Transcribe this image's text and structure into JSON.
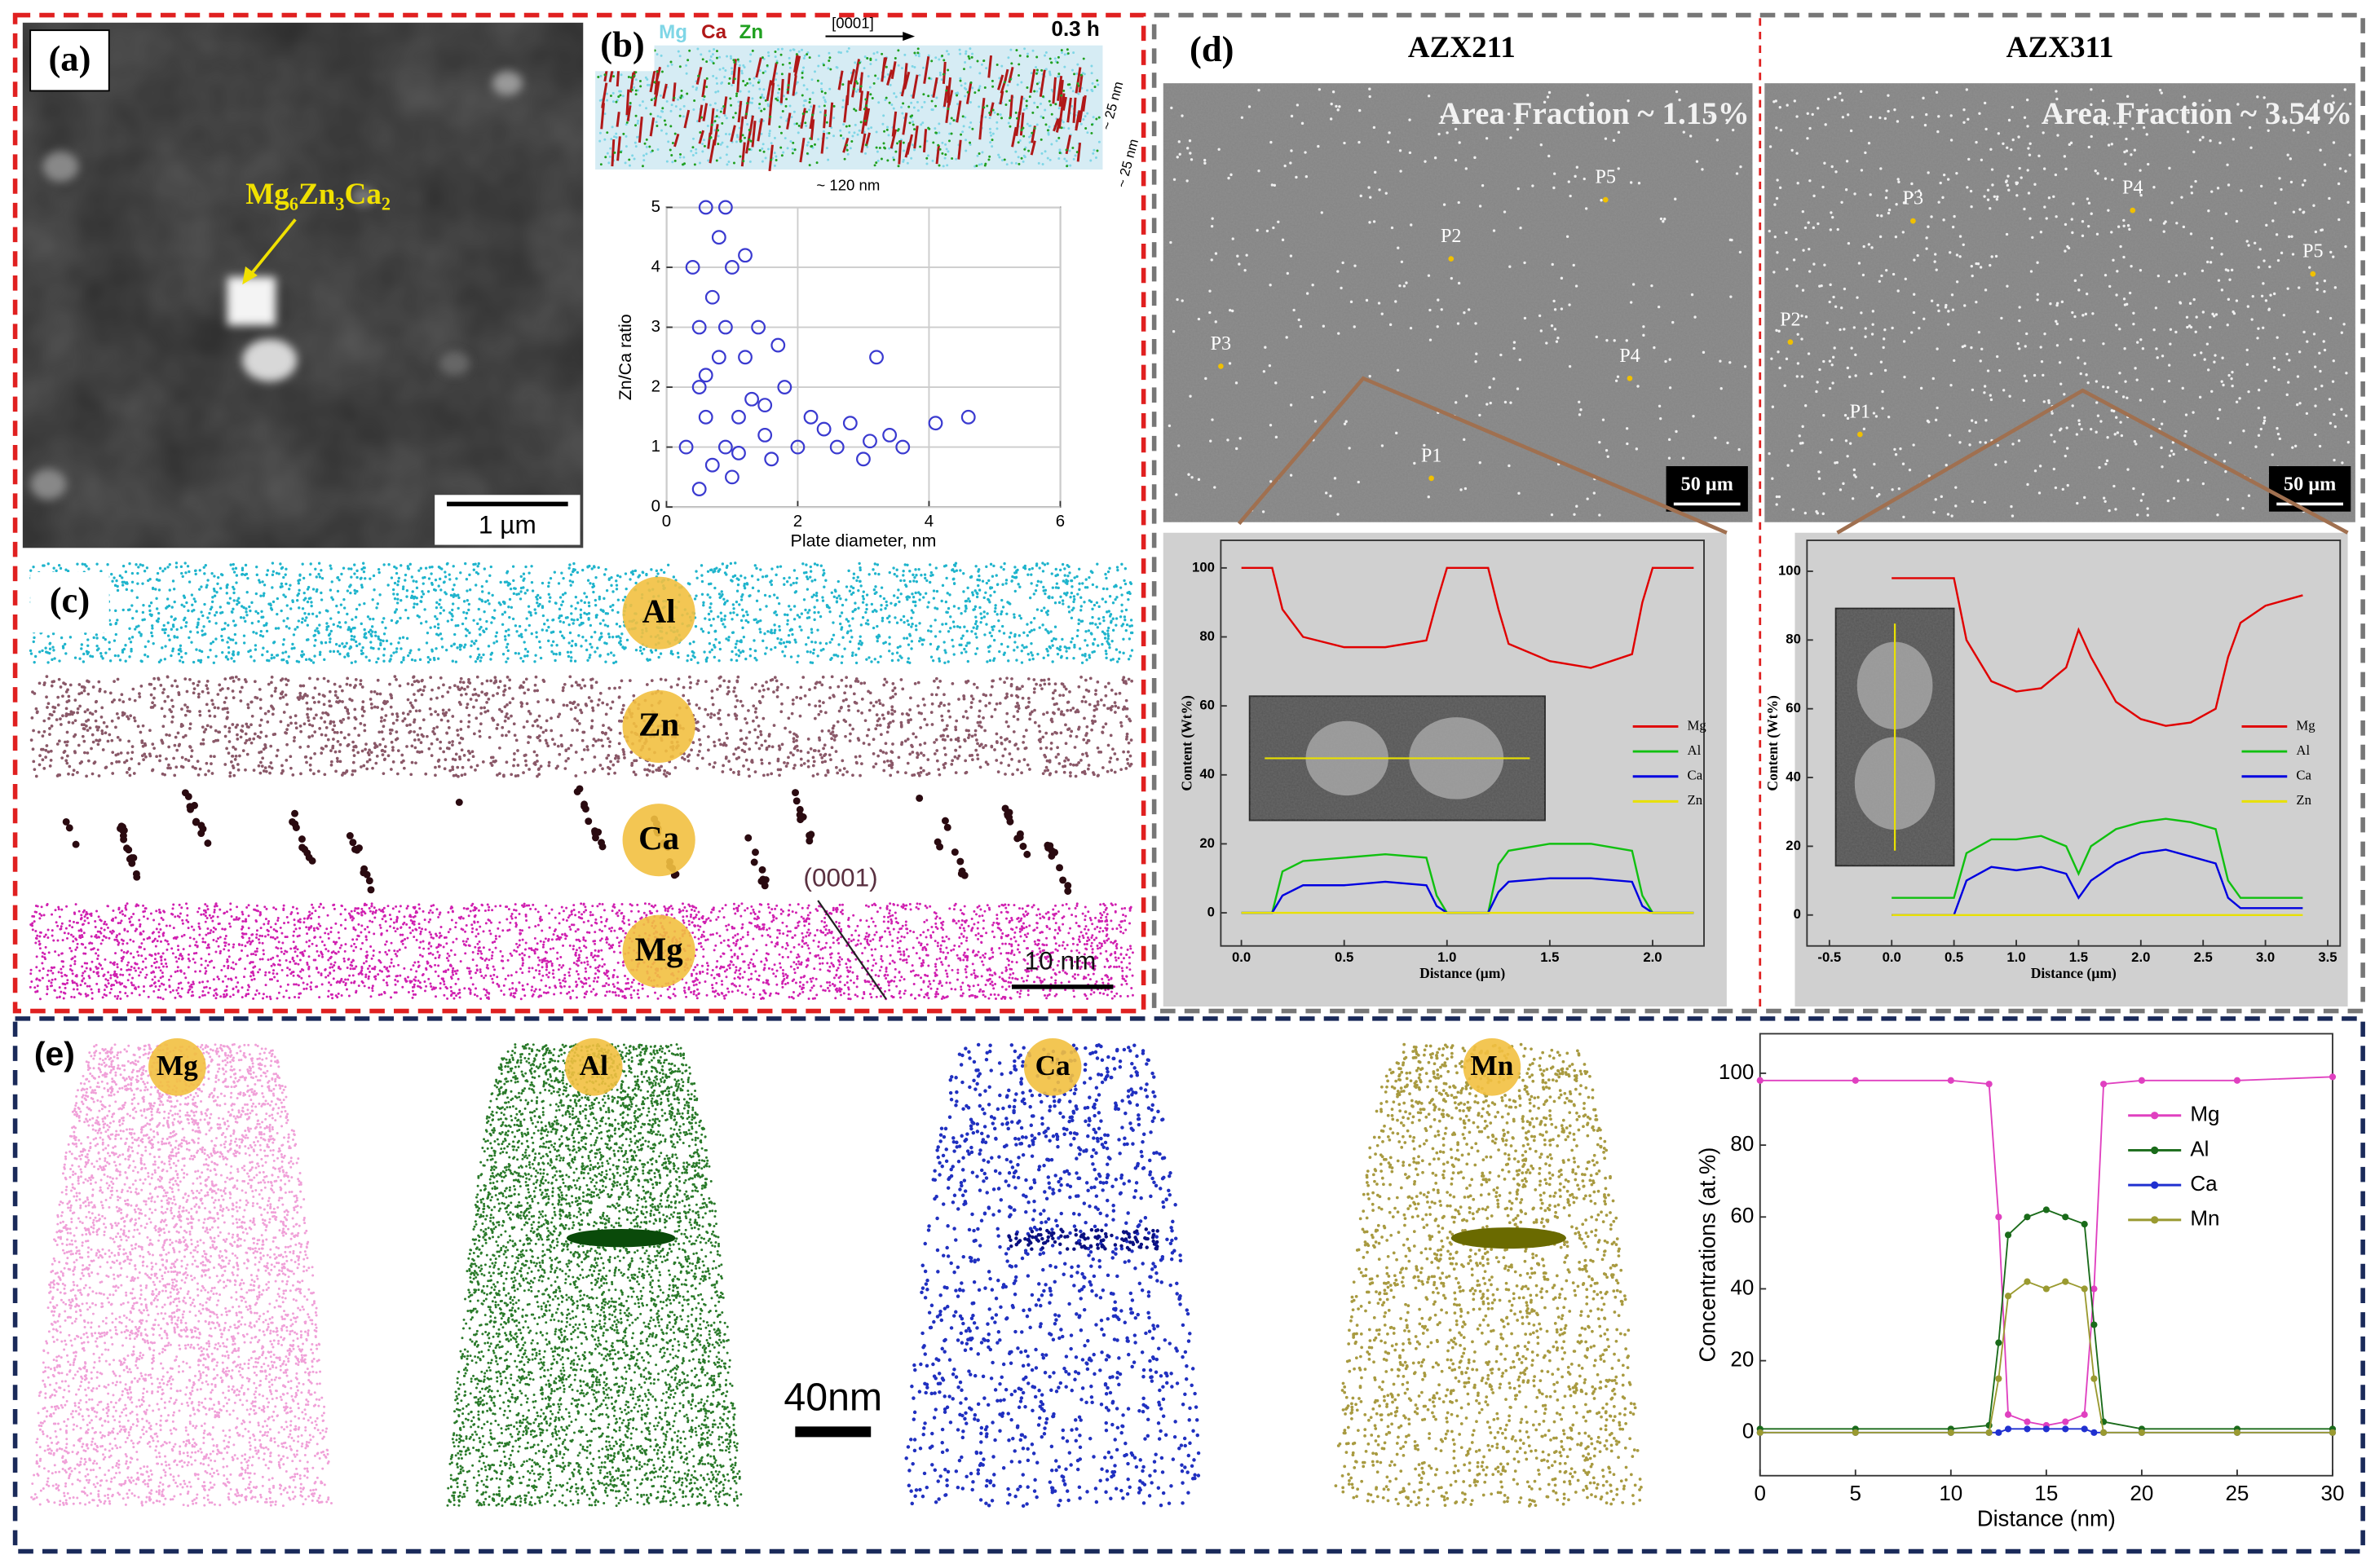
{
  "panel_a": {
    "label": "(a)",
    "phase": "Mg₆Zn₃Ca₂",
    "scale_bar": "1 µm"
  },
  "panel_b": {
    "label": "(b)",
    "legend_elements": [
      "Mg",
      "Ca",
      "Zn"
    ],
    "direction": "[0001]",
    "time": "0.3 h",
    "length": "~ 120 nm",
    "thickness": [
      "~ 25 nm",
      "~ 25 nm"
    ],
    "plot": {
      "type": "scatter",
      "xlabel": "Plate diameter, nm",
      "ylabel": "Zn/Ca ratio",
      "xlim": [
        0,
        6
      ],
      "xticks": [
        0,
        2,
        4,
        6
      ],
      "ylim": [
        0,
        5
      ],
      "yticks": [
        0,
        1,
        2,
        3,
        4,
        5
      ],
      "grid": true,
      "series": [
        {
          "color": "#3a3ad0",
          "x": [
            0.3,
            0.4,
            0.5,
            0.5,
            0.6,
            0.6,
            0.7,
            0.8,
            0.8,
            0.9,
            0.9,
            1.0,
            1.0,
            1.1,
            1.2,
            1.3,
            1.4,
            1.5,
            1.6,
            1.8,
            2.0,
            2.2,
            2.4,
            2.6,
            2.8,
            3.0,
            3.2,
            3.4,
            3.6,
            4.1,
            4.6,
            0.5,
            0.7,
            0.9,
            1.1,
            0.6,
            1.2,
            1.5,
            1.7,
            3.1
          ],
          "values": [
            1.0,
            4.0,
            3.0,
            2.0,
            1.5,
            5.0,
            3.5,
            2.5,
            4.5,
            1.0,
            3.0,
            4.0,
            0.5,
            1.5,
            2.5,
            1.8,
            3.0,
            1.2,
            0.8,
            2.0,
            1.0,
            1.5,
            1.3,
            1.0,
            1.4,
            0.8,
            2.5,
            1.2,
            1.0,
            1.4,
            1.5,
            0.3,
            0.7,
            5.0,
            0.9,
            2.2,
            4.2,
            1.7,
            2.7,
            1.1
          ]
        }
      ]
    }
  },
  "panel_c": {
    "label": "(c)",
    "elements": [
      "Al",
      "Zn",
      "Ca",
      "Mg"
    ],
    "plane": "(0001)",
    "scale_bar": "10 nm"
  },
  "panel_d": {
    "label": "(d)",
    "samples": [
      {
        "name": "AZX211",
        "area_fraction": "Area Fraction ~ 1.15%",
        "points": [
          "P1",
          "P2",
          "P3",
          "P4",
          "P5"
        ],
        "scale_bar": "50 µm",
        "profile": {
          "type": "line",
          "xlabel": "Distance (µm)",
          "ylabel": "Content (Wt%)",
          "xlim": [
            -0.1,
            2.25
          ],
          "xticks": [
            {
              "value": 0,
              "label": "0.0"
            },
            0.5,
            {
              "value": 1,
              "label": "1.0"
            },
            1.5,
            {
              "value": 2,
              "label": "2.0"
            }
          ],
          "ylim": [
            -9.6,
            108
          ],
          "yticks": [
            0,
            20,
            40,
            60,
            80,
            100
          ],
          "x": [
            0,
            0.15,
            0.2,
            0.3,
            0.5,
            0.7,
            0.9,
            0.95,
            1.0,
            1.2,
            1.25,
            1.3,
            1.5,
            1.7,
            1.9,
            1.95,
            2.0,
            2.2
          ],
          "series": [
            {
              "name": "Mg",
              "color": "#e00000",
              "values": [
                100,
                100,
                88,
                80,
                77,
                77,
                79,
                90,
                100,
                100,
                88,
                78,
                73,
                71,
                75,
                90,
                100,
                100
              ]
            },
            {
              "name": "Al",
              "color": "#10c010",
              "values": [
                0,
                0,
                12,
                15,
                16,
                17,
                16,
                5,
                0,
                0,
                14,
                18,
                20,
                20,
                18,
                5,
                0,
                0
              ]
            },
            {
              "name": "Ca",
              "color": "#0000e0",
              "values": [
                0,
                0,
                5,
                8,
                8,
                9,
                8,
                2,
                0,
                0,
                6,
                9,
                10,
                10,
                9,
                2,
                0,
                0
              ]
            },
            {
              "name": "Zn",
              "color": "#e8e000",
              "values": [
                0,
                0,
                0,
                0,
                0,
                0,
                0,
                0,
                0,
                0,
                0,
                0,
                0,
                0,
                0,
                0,
                0,
                0
              ]
            }
          ]
        }
      },
      {
        "name": "AZX311",
        "area_fraction": "Area Fraction ~ 3.54%",
        "points": [
          "P1",
          "P2",
          "P3",
          "P4",
          "P5"
        ],
        "scale_bar": "50 µm",
        "profile": {
          "type": "line",
          "xlabel": "Distance (µm)",
          "ylabel": "Content (Wt%)",
          "xlim": [
            -0.68,
            3.6
          ],
          "xticks": [
            -0.5,
            {
              "value": 0,
              "label": "0.0"
            },
            0.5,
            {
              "value": 1,
              "label": "1.0"
            },
            1.5,
            {
              "value": 2,
              "label": "2.0"
            },
            2.5,
            {
              "value": 3,
              "label": "3.0"
            },
            3.5
          ],
          "ylim": [
            -9,
            109
          ],
          "yticks": [
            0,
            20,
            40,
            60,
            80,
            100
          ],
          "x": [
            0,
            0.5,
            0.6,
            0.8,
            1.0,
            1.2,
            1.4,
            1.5,
            1.6,
            1.8,
            2.0,
            2.2,
            2.4,
            2.6,
            2.7,
            2.8,
            3.0,
            3.3
          ],
          "series": [
            {
              "name": "Mg",
              "color": "#e00000",
              "values": [
                98,
                98,
                80,
                68,
                65,
                66,
                72,
                83,
                75,
                62,
                57,
                55,
                56,
                60,
                75,
                85,
                90,
                93
              ]
            },
            {
              "name": "Al",
              "color": "#10c010",
              "values": [
                5,
                5,
                18,
                22,
                22,
                23,
                20,
                12,
                20,
                25,
                27,
                28,
                27,
                25,
                10,
                5,
                5,
                5
              ]
            },
            {
              "name": "Ca",
              "color": "#0000e0",
              "values": [
                0,
                0,
                10,
                14,
                13,
                14,
                12,
                5,
                10,
                15,
                18,
                19,
                17,
                15,
                5,
                2,
                2,
                2
              ]
            },
            {
              "name": "Zn",
              "color": "#e8e000",
              "values": [
                0,
                0,
                0,
                0,
                0,
                0,
                0,
                0,
                0,
                0,
                0,
                0,
                0,
                0,
                0,
                0,
                0,
                0
              ]
            }
          ]
        }
      }
    ]
  },
  "panel_e": {
    "label": "(e)",
    "maps": [
      "Mg",
      "Al",
      "Ca",
      "Mn"
    ],
    "scale_bar": "40nm",
    "profile": {
      "type": "line",
      "markers": true,
      "xlabel": "Distance (nm)",
      "ylabel": "Concentrations (at.%)",
      "xlim": [
        0,
        30
      ],
      "xticks": [
        0,
        5,
        10,
        15,
        20,
        25,
        30
      ],
      "ylim": [
        -12,
        111
      ],
      "yticks": [
        0,
        20,
        40,
        60,
        80,
        100
      ],
      "x": [
        0,
        5,
        10,
        12,
        12.5,
        13,
        14,
        15,
        16,
        17,
        17.5,
        18,
        20,
        25,
        30
      ],
      "series": [
        {
          "name": "Mg",
          "color": "#e040c0",
          "values": [
            98,
            98,
            98,
            97,
            60,
            5,
            3,
            2,
            3,
            5,
            40,
            97,
            98,
            98,
            99
          ]
        },
        {
          "name": "Al",
          "color": "#1a6b1a",
          "values": [
            1,
            1,
            1,
            2,
            25,
            55,
            60,
            62,
            60,
            58,
            30,
            3,
            1,
            1,
            1
          ]
        },
        {
          "name": "Ca",
          "color": "#2030d0",
          "values": [
            0,
            0,
            0,
            0,
            0,
            1,
            1,
            1,
            1,
            1,
            0,
            0,
            0,
            0,
            0
          ]
        },
        {
          "name": "Mn",
          "color": "#9a9a30",
          "values": [
            0,
            0,
            0,
            0,
            15,
            38,
            42,
            40,
            42,
            40,
            15,
            0,
            0,
            0,
            0
          ]
        }
      ]
    }
  }
}
